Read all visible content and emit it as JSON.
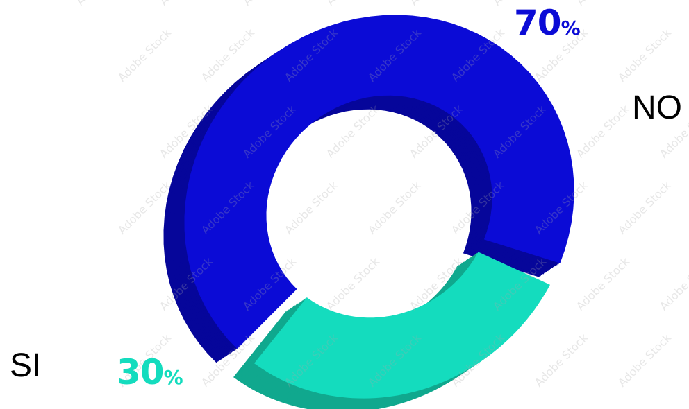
{
  "chart_data": {
    "type": "pie",
    "categories": [
      "NO",
      "SI"
    ],
    "values": [
      70,
      30
    ],
    "value_labels": [
      {
        "number": "70",
        "sign": "%"
      },
      {
        "number": "30",
        "sign": "%"
      }
    ],
    "colors": {
      "NO": {
        "face": "#0b0bd6",
        "side": "#06069a",
        "top": "#1515c2"
      },
      "SI": {
        "face": "#14dcbe",
        "side": "#10a88e",
        "top": "#12c6a8"
      }
    },
    "style": "3d-donut",
    "legend": "none"
  },
  "watermark": "Adobe Stock"
}
